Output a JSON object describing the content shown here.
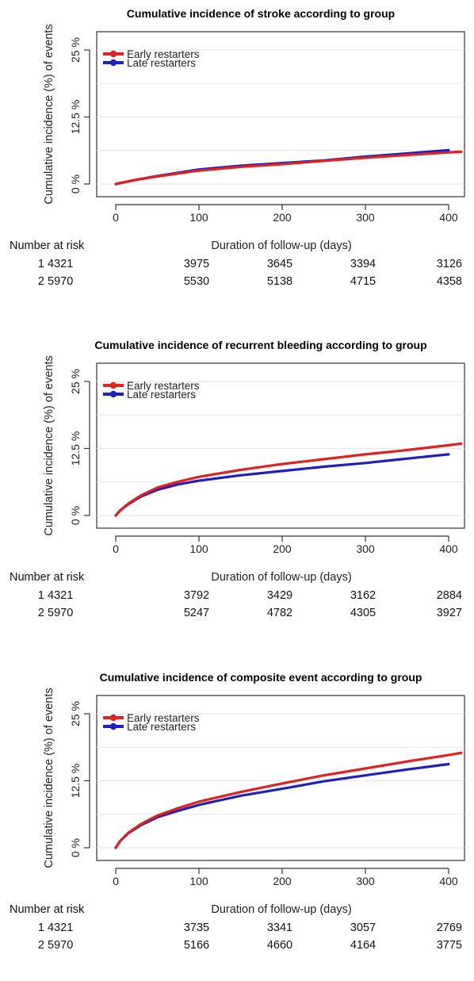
{
  "colors": {
    "early": "#dd2222",
    "late": "#1f1fbd",
    "axis": "#333333",
    "grid": "#e6e6e6"
  },
  "number_at_risk_label": "Number at risk",
  "chart_data": [
    {
      "type": "line",
      "title": "Cumulative incidence of stroke according to group",
      "xlabel": "Duration of follow-up (days)",
      "ylabel": "Cumulative incidence (%) of events",
      "xlim": [
        0,
        415
      ],
      "ylim": [
        0,
        25
      ],
      "xticks": [
        0,
        100,
        200,
        300,
        400
      ],
      "xtick_labels": [
        "0",
        "100",
        "200",
        "300",
        "400"
      ],
      "yticks": [
        0,
        12.5,
        25
      ],
      "ytick_labels": [
        "0 %",
        "12.5 %",
        "25 %"
      ],
      "legend": "top-left",
      "series": [
        {
          "name": "Early restarters",
          "color": "#dd2222",
          "x": [
            0,
            25,
            50,
            100,
            150,
            200,
            250,
            300,
            350,
            400,
            415
          ],
          "y": [
            0,
            0.8,
            1.4,
            2.5,
            3.2,
            3.7,
            4.3,
            4.9,
            5.4,
            5.9,
            6.0
          ]
        },
        {
          "name": "Late restarters",
          "color": "#1f1fbd",
          "x": [
            0,
            25,
            50,
            100,
            150,
            200,
            250,
            300,
            350,
            400
          ],
          "y": [
            0,
            0.8,
            1.5,
            2.7,
            3.4,
            3.9,
            4.4,
            5.1,
            5.7,
            6.3
          ]
        }
      ],
      "risk_table": {
        "times": [
          0,
          100,
          200,
          300,
          400
        ],
        "rows": [
          {
            "label": "1",
            "values": [
              "4321",
              "3975",
              "3645",
              "3394",
              "3126"
            ]
          },
          {
            "label": "2",
            "values": [
              "5970",
              "5530",
              "5138",
              "4715",
              "4358"
            ]
          }
        ]
      }
    },
    {
      "type": "line",
      "title": "Cumulative incidence of recurrent bleeding according to group",
      "xlabel": "Duration of follow-up (days)",
      "ylabel": "Cumulative incidence (%) of events",
      "xlim": [
        0,
        415
      ],
      "ylim": [
        0,
        25
      ],
      "xticks": [
        0,
        100,
        200,
        300,
        400
      ],
      "xtick_labels": [
        "0",
        "100",
        "200",
        "300",
        "400"
      ],
      "yticks": [
        0,
        12.5,
        25
      ],
      "ytick_labels": [
        "0 %",
        "12.5 %",
        "25 %"
      ],
      "legend": "top-left",
      "series": [
        {
          "name": "Early restarters",
          "color": "#dd2222",
          "x": [
            0,
            5,
            15,
            30,
            50,
            75,
            100,
            150,
            200,
            250,
            300,
            350,
            400,
            415
          ],
          "y": [
            0,
            0.9,
            2.2,
            3.7,
            5.2,
            6.3,
            7.2,
            8.5,
            9.6,
            10.5,
            11.4,
            12.2,
            13.1,
            13.4
          ]
        },
        {
          "name": "Late restarters",
          "color": "#1f1fbd",
          "x": [
            0,
            5,
            15,
            30,
            50,
            75,
            100,
            150,
            200,
            250,
            300,
            350,
            400
          ],
          "y": [
            0,
            0.9,
            2.1,
            3.5,
            4.8,
            5.8,
            6.5,
            7.5,
            8.3,
            9.1,
            9.8,
            10.6,
            11.4
          ]
        }
      ],
      "risk_table": {
        "times": [
          0,
          100,
          200,
          300,
          400
        ],
        "rows": [
          {
            "label": "1",
            "values": [
              "4321",
              "3792",
              "3429",
              "3162",
              "2884"
            ]
          },
          {
            "label": "2",
            "values": [
              "5970",
              "5247",
              "4782",
              "4305",
              "3927"
            ]
          }
        ]
      }
    },
    {
      "type": "line",
      "title": "Cumulative incidence of composite event according to group",
      "xlabel": "Duration of follow-up (days)",
      "ylabel": "Cumulative incidence (%) of events",
      "xlim": [
        0,
        415
      ],
      "ylim": [
        0,
        25
      ],
      "xticks": [
        0,
        100,
        200,
        300,
        400
      ],
      "xtick_labels": [
        "0",
        "100",
        "200",
        "300",
        "400"
      ],
      "yticks": [
        0,
        12.5,
        25
      ],
      "ytick_labels": [
        "0 %",
        "12.5 %",
        "25 %"
      ],
      "legend": "top-left",
      "series": [
        {
          "name": "Early restarters",
          "color": "#dd2222",
          "x": [
            0,
            5,
            15,
            30,
            50,
            75,
            100,
            150,
            200,
            250,
            300,
            350,
            400,
            415
          ],
          "y": [
            0,
            1.2,
            2.8,
            4.4,
            6.0,
            7.4,
            8.6,
            10.4,
            12.0,
            13.5,
            14.8,
            16.1,
            17.3,
            17.7
          ]
        },
        {
          "name": "Late restarters",
          "color": "#1f1fbd",
          "x": [
            0,
            5,
            15,
            30,
            50,
            75,
            100,
            150,
            200,
            250,
            300,
            350,
            400
          ],
          "y": [
            0,
            1.2,
            2.7,
            4.2,
            5.7,
            6.9,
            8.0,
            9.7,
            11.0,
            12.4,
            13.5,
            14.6,
            15.6
          ]
        }
      ],
      "risk_table": {
        "times": [
          0,
          100,
          200,
          300,
          400
        ],
        "rows": [
          {
            "label": "1",
            "values": [
              "4321",
              "3735",
              "3341",
              "3057",
              "2769"
            ]
          },
          {
            "label": "2",
            "values": [
              "5970",
              "5166",
              "4660",
              "4164",
              "3775"
            ]
          }
        ]
      }
    }
  ]
}
